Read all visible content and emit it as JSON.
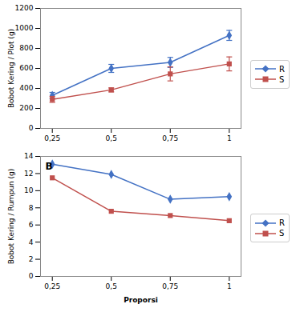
{
  "chart_data": [
    {
      "type": "line",
      "ylabel": "Bobot Kering / Plot (g)",
      "x": [
        0.25,
        0.5,
        0.75,
        1.0
      ],
      "xlim": [
        0.2,
        1.05
      ],
      "xticks": [
        {
          "value": 0.25,
          "label": "0,25"
        },
        {
          "value": 0.5,
          "label": "0,5"
        },
        {
          "value": 0.75,
          "label": "0,75"
        },
        1
      ],
      "ylim": [
        0,
        1200
      ],
      "yticks": [
        0,
        200,
        400,
        600,
        800,
        1000,
        1200
      ],
      "legend": "right",
      "grid": false,
      "series": [
        {
          "name": "R",
          "color": "#4472C4",
          "marker": "diamond",
          "values": [
            330,
            600,
            660,
            930
          ],
          "errors": [
            30,
            40,
            50,
            50
          ]
        },
        {
          "name": "S",
          "color": "#C0504D",
          "marker": "square",
          "values": [
            290,
            385,
            545,
            645
          ],
          "errors": [
            30,
            20,
            70,
            70
          ]
        }
      ]
    },
    {
      "type": "line",
      "xlabel": "Proporsi",
      "ylabel": "Bobot Kering / Rumpun (g)",
      "annotations": [
        "B"
      ],
      "x": [
        0.25,
        0.5,
        0.75,
        1.0
      ],
      "xlim": [
        0.2,
        1.05
      ],
      "xticks": [
        {
          "value": 0.25,
          "label": "0,25"
        },
        {
          "value": 0.5,
          "label": "0,5"
        },
        {
          "value": 0.75,
          "label": "0,75"
        },
        1
      ],
      "ylim": [
        0,
        14
      ],
      "yticks": [
        0,
        2,
        4,
        6,
        8,
        10,
        12,
        14
      ],
      "legend": "right",
      "grid": false,
      "series": [
        {
          "name": "R",
          "color": "#4472C4",
          "marker": "diamond",
          "values": [
            13.1,
            11.9,
            9.0,
            9.3
          ]
        },
        {
          "name": "S",
          "color": "#C0504D",
          "marker": "square",
          "values": [
            11.5,
            7.6,
            7.1,
            6.5
          ]
        }
      ]
    }
  ]
}
